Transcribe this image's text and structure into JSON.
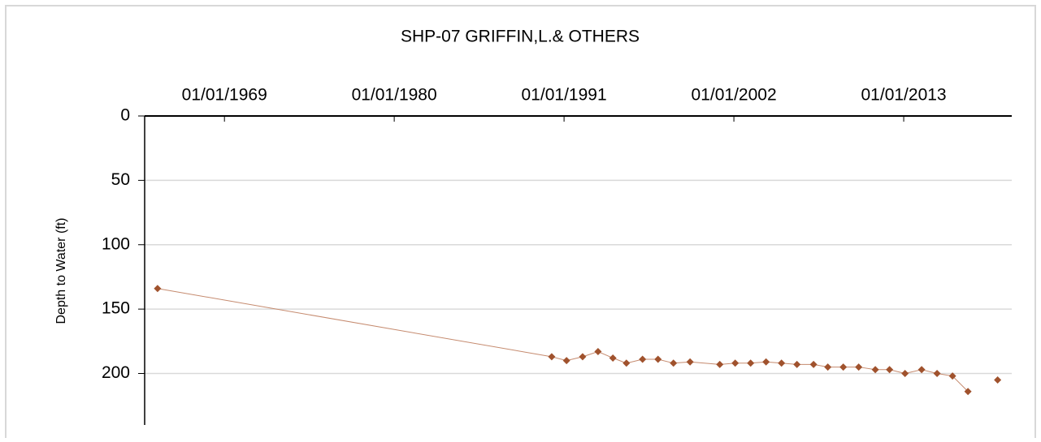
{
  "chart_data": {
    "type": "line",
    "title": "SHP-07  GRIFFIN,L.& OTHERS",
    "y_label": "Depth to Water (ft)",
    "y_inverted": true,
    "grid": true,
    "x_axis_position": "top",
    "xlim": [
      "1963-11-01",
      "2020-01-01"
    ],
    "xticks": [
      {
        "value": "1969-01-01",
        "label": "01/01/1969"
      },
      {
        "value": "1980-01-01",
        "label": "01/01/1980"
      },
      {
        "value": "1991-01-01",
        "label": "01/01/1991"
      },
      {
        "value": "2002-01-01",
        "label": "01/01/2002"
      },
      {
        "value": "2013-01-01",
        "label": "01/01/2013"
      }
    ],
    "ylim": [
      0,
      240
    ],
    "yticks": [
      0,
      50,
      100,
      150,
      200
    ],
    "x": [
      "1964-09-01",
      "1990-03-15",
      "1991-03-01",
      "1992-03-15",
      "1993-03-15",
      "1994-03-01",
      "1995-01-15",
      "1996-02-01",
      "1997-02-01",
      "1998-02-01",
      "1999-03-01",
      "2001-02-01",
      "2002-02-01",
      "2003-02-01",
      "2004-02-01",
      "2005-02-01",
      "2006-02-01",
      "2007-03-01",
      "2008-02-01",
      "2009-02-01",
      "2010-02-01",
      "2011-03-01",
      "2012-02-01",
      "2013-02-01",
      "2014-03-01",
      "2015-03-01",
      "2016-03-01",
      "2017-03-01",
      null,
      "2019-02-01"
    ],
    "series": [
      {
        "name": "Depth to Water",
        "color": "#a0522d",
        "line_color": "#c58a6e",
        "values": [
          134,
          187,
          190,
          187,
          183,
          188,
          192,
          189,
          189,
          192,
          191,
          193,
          192,
          192,
          191,
          192,
          193,
          193,
          195,
          195,
          195,
          197,
          197,
          200,
          197,
          200,
          202,
          214,
          null,
          205
        ]
      }
    ]
  }
}
